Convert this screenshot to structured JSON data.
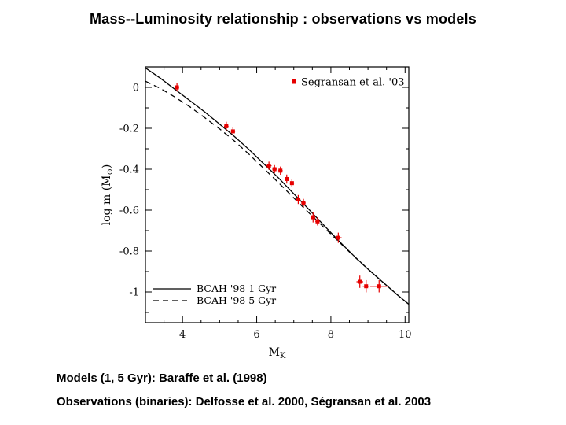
{
  "title": "Mass--Luminosity relationship : observations vs models",
  "footer": {
    "models": "Models (1, 5 Gyr): Baraffe et al. (1998)",
    "observations": "Observations (binaries): Delfosse et al. 2000, Ségransan et al. 2003"
  },
  "colors": {
    "background": "#ffffff",
    "frame": "#000000",
    "curves": "#000000",
    "data_points": "#e60000"
  },
  "chart_data": {
    "type": "scatter",
    "title": "",
    "xlabel": "M_K",
    "ylabel": "log m (M_sun)",
    "xlabel_parts": {
      "main": "M",
      "sub": "K"
    },
    "ylabel_parts": {
      "pre": "log m (M",
      "sub": "⊙",
      "post": ")"
    },
    "x_range": [
      3.0,
      10.1
    ],
    "y_range": [
      0.1,
      -1.15
    ],
    "grid": false,
    "x_ticks": {
      "values": [
        4,
        6,
        8,
        10
      ],
      "labels": [
        "4",
        "6",
        "8",
        "10"
      ],
      "minor_step": 0.5
    },
    "y_ticks": {
      "values": [
        0,
        -0.2,
        -0.4,
        -0.6,
        -0.8,
        -1
      ],
      "labels": [
        "0",
        "-0.2",
        "-0.4",
        "-0.6",
        "-0.8",
        "-1"
      ],
      "minor_step": 0.1
    },
    "legend_marker": {
      "label": "Segransan et al. '03",
      "position": "top-right"
    },
    "legend_lines": {
      "position": "bottom-left",
      "entries": [
        {
          "label": "BCAH '98 1 Gyr",
          "style": "solid"
        },
        {
          "label": "BCAH '98 5 Gyr",
          "style": "dashed"
        }
      ]
    },
    "series": [
      {
        "name": "BCAH '98 1 Gyr",
        "kind": "line",
        "style": "solid",
        "x": [
          3.0,
          3.4,
          3.8,
          4.2,
          4.6,
          5.0,
          5.4,
          5.8,
          6.2,
          6.6,
          7.0,
          7.4,
          7.8,
          8.2,
          8.6,
          9.0,
          9.4,
          9.8,
          10.1
        ],
        "y": [
          0.095,
          0.045,
          -0.01,
          -0.065,
          -0.12,
          -0.18,
          -0.24,
          -0.305,
          -0.375,
          -0.445,
          -0.52,
          -0.595,
          -0.672,
          -0.748,
          -0.82,
          -0.888,
          -0.952,
          -1.015,
          -1.06
        ]
      },
      {
        "name": "BCAH '98 5 Gyr",
        "kind": "line",
        "style": "dashed",
        "x": [
          3.0,
          3.4,
          3.8,
          4.2,
          4.6,
          5.0,
          5.4,
          5.8,
          6.2,
          6.6,
          7.0,
          7.4,
          7.8,
          8.2,
          8.6,
          9.0,
          9.4,
          9.8,
          10.1
        ],
        "y": [
          0.03,
          -0.005,
          -0.048,
          -0.095,
          -0.148,
          -0.203,
          -0.262,
          -0.328,
          -0.398,
          -0.468,
          -0.54,
          -0.612,
          -0.682,
          -0.752,
          -0.822,
          -0.888,
          -0.952,
          -1.015,
          -1.06
        ]
      },
      {
        "name": "Segransan et al. '03",
        "kind": "points",
        "points": [
          {
            "x": 3.85,
            "y": 0.0,
            "ex": 0.06,
            "ey": 0.02
          },
          {
            "x": 5.18,
            "y": -0.19,
            "ex": 0.06,
            "ey": 0.022
          },
          {
            "x": 5.36,
            "y": -0.215,
            "ex": 0.06,
            "ey": 0.02
          },
          {
            "x": 6.33,
            "y": -0.383,
            "ex": 0.07,
            "ey": 0.02
          },
          {
            "x": 6.48,
            "y": -0.4,
            "ex": 0.06,
            "ey": 0.02
          },
          {
            "x": 6.64,
            "y": -0.407,
            "ex": 0.06,
            "ey": 0.02
          },
          {
            "x": 6.81,
            "y": -0.448,
            "ex": 0.06,
            "ey": 0.022
          },
          {
            "x": 6.95,
            "y": -0.468,
            "ex": 0.06,
            "ey": 0.02
          },
          {
            "x": 7.12,
            "y": -0.548,
            "ex": 0.06,
            "ey": 0.022
          },
          {
            "x": 7.26,
            "y": -0.565,
            "ex": 0.06,
            "ey": 0.02
          },
          {
            "x": 7.52,
            "y": -0.635,
            "ex": 0.06,
            "ey": 0.025
          },
          {
            "x": 7.64,
            "y": -0.655,
            "ex": 0.06,
            "ey": 0.02
          },
          {
            "x": 8.2,
            "y": -0.735,
            "ex": 0.09,
            "ey": 0.025
          },
          {
            "x": 8.78,
            "y": -0.95,
            "ex": 0.09,
            "ey": 0.03
          },
          {
            "x": 8.95,
            "y": -0.972,
            "ex": 0.09,
            "ey": 0.03
          },
          {
            "x": 9.3,
            "y": -0.972,
            "ex": 0.24,
            "ey": 0.03
          }
        ]
      }
    ]
  }
}
